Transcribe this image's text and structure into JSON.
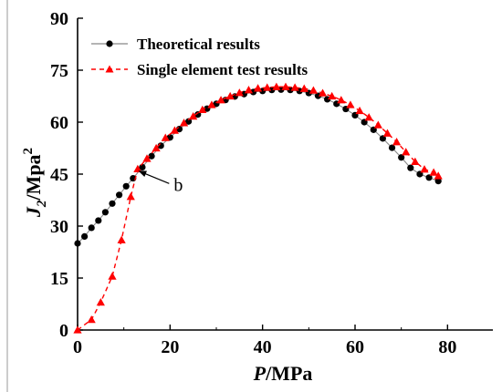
{
  "chart_data": {
    "type": "scatter",
    "xlabel_italic": "P",
    "xlabel_unit": "/MPa",
    "ylabel_italic": "J",
    "ylabel_sub": "2",
    "ylabel_unit": "/Mpa",
    "ylabel_sup": "2",
    "xlim": [
      0,
      90
    ],
    "ylim": [
      0,
      90
    ],
    "x_ticks": [
      0,
      20,
      40,
      60,
      80
    ],
    "y_ticks": [
      0,
      15,
      30,
      45,
      60,
      75,
      90
    ],
    "grid": false,
    "legend_position": "top-left",
    "annotation": {
      "text": "b",
      "x": 12.3,
      "y": 46.5
    },
    "series": [
      {
        "name": "Theoretical results",
        "line_style": "solid",
        "marker": "circle",
        "color": "#000000",
        "line_color": "#888888",
        "x": [
          0,
          1.5,
          3,
          4.5,
          6,
          7.5,
          9,
          10.5,
          12,
          14,
          16,
          18,
          20,
          22,
          24,
          26,
          28,
          30,
          32,
          34,
          36,
          38,
          40,
          42,
          44,
          46,
          48,
          50,
          52,
          54,
          56,
          58,
          60,
          62,
          64,
          66,
          68,
          70,
          72,
          74,
          76,
          78
        ],
        "y": [
          25,
          27,
          29.5,
          31.6,
          34,
          36.5,
          39,
          41.5,
          43.8,
          47,
          50.2,
          53.2,
          55.6,
          58,
          60.2,
          62.2,
          63.9,
          65.3,
          66.4,
          67.4,
          68.1,
          68.7,
          69,
          69.3,
          69.4,
          69.3,
          69,
          68.4,
          67.6,
          66.6,
          65.3,
          63.8,
          62,
          60,
          57.8,
          55.3,
          52.6,
          49.8,
          46.8,
          45,
          44,
          43
        ]
      },
      {
        "name": "Single element test results",
        "line_style": "dashed",
        "marker": "triangle",
        "color": "#ff0000",
        "line_color": "#ff0000",
        "x": [
          0,
          3,
          5,
          7.5,
          9.5,
          11.5,
          13,
          15,
          17,
          19,
          21,
          23,
          25,
          27,
          29,
          31,
          33,
          35,
          37,
          39,
          41,
          43,
          45,
          47,
          49,
          51,
          53,
          55,
          57,
          59,
          61,
          63,
          65,
          67,
          69,
          71,
          73,
          75,
          77,
          78
        ],
        "y": [
          0,
          3,
          8,
          15.5,
          26,
          38.5,
          46.5,
          49.5,
          52.5,
          55.5,
          57.6,
          59.8,
          61.7,
          63.6,
          65,
          66.4,
          67.5,
          68.5,
          69.3,
          69.8,
          70,
          70.2,
          70.2,
          70,
          69.7,
          69.2,
          68.4,
          67.5,
          66.4,
          65,
          63.3,
          61.4,
          59.2,
          56.8,
          54.3,
          51.4,
          48.6,
          46.4,
          45.5,
          44.5
        ]
      }
    ]
  }
}
